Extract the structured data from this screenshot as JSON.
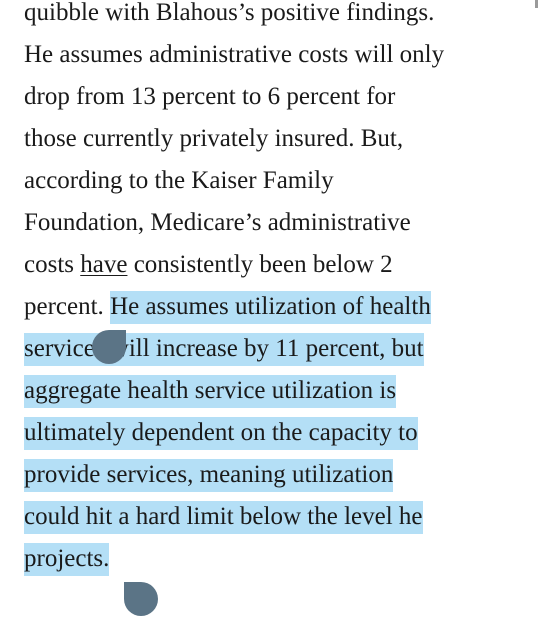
{
  "article": {
    "lines": [
      {
        "before": "quibble with Blahous’s positive findings.",
        "link": "",
        "after": "",
        "selected": ""
      },
      {
        "before": "He assumes administrative costs will only",
        "link": "",
        "after": "",
        "selected": ""
      },
      {
        "before": "drop from 13 percent to 6 percent for",
        "link": "",
        "after": "",
        "selected": ""
      },
      {
        "before": "those currently privately insured. But,",
        "link": "",
        "after": "",
        "selected": ""
      },
      {
        "before": "according to the Kaiser Family",
        "link": "",
        "after": "",
        "selected": ""
      },
      {
        "before": "Foundation, Medicare’s administrative",
        "link": "",
        "after": "",
        "selected": ""
      },
      {
        "before": "costs ",
        "link": "have",
        "after": " consistently been below 2",
        "selected": ""
      },
      {
        "before": "percent. ",
        "link": "",
        "after": "",
        "selected": "He assumes utilization of health"
      },
      {
        "before": "",
        "link": "",
        "after": "",
        "selected": "services will increase by 11 percent, but"
      },
      {
        "before": "",
        "link": "",
        "after": "",
        "selected": "aggregate health service utilization is"
      },
      {
        "before": "",
        "link": "",
        "after": "",
        "selected": "ultimately dependent on the capacity to"
      },
      {
        "before": "",
        "link": "",
        "after": "",
        "selected": "provide services, meaning utilization"
      },
      {
        "before": "",
        "link": "",
        "after": "",
        "selected": "could hit a hard limit below the level he"
      },
      {
        "before": "",
        "link": "",
        "after": "",
        "selected": "projects."
      }
    ]
  },
  "selection": {
    "highlight_color": "#b4dff6",
    "handle_color": "#5b7486"
  }
}
